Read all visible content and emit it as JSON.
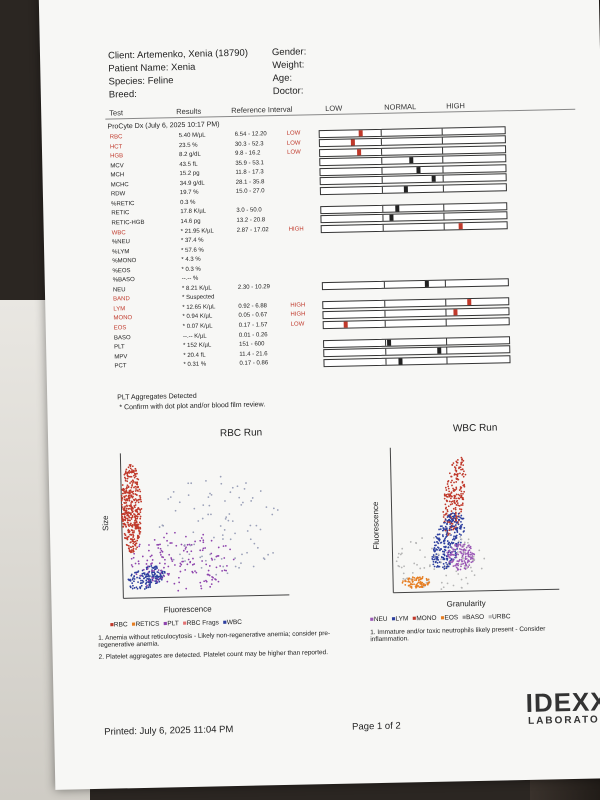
{
  "header": {
    "client": "Client: Artemenko, Xenia (18790)",
    "patient": "Patient Name: Xenia",
    "species": "Species: Feline",
    "breed": "Breed:",
    "gender": "Gender:",
    "weight": "Weight:",
    "age": "Age:",
    "doctor": "Doctor:"
  },
  "columns": {
    "test": "Test",
    "results": "Results",
    "reference": "Reference Interval",
    "low": "LOW",
    "normal": "NORMAL",
    "high": "HIGH"
  },
  "procyte": "ProCyte Dx (July 6, 2025 10:17 PM)",
  "rows": [
    {
      "test": "RBC",
      "result": "5.40 M/µL",
      "ref": "6.54 - 12.20",
      "flag": "LOW",
      "red": true,
      "gauge": {
        "group": "g1",
        "pos": 0.21,
        "red": true
      }
    },
    {
      "test": "HCT",
      "result": "23.5 %",
      "ref": "30.3 - 52.3",
      "flag": "LOW",
      "red": true,
      "gauge": {
        "group": "g1",
        "pos": 0.17,
        "red": true
      }
    },
    {
      "test": "HGB",
      "result": "8.2 g/dL",
      "ref": "9.8 - 16.2",
      "flag": "LOW",
      "red": true,
      "gauge": {
        "group": "g1",
        "pos": 0.2,
        "red": true
      }
    },
    {
      "test": "MCV",
      "result": "43.5 fL",
      "ref": "35.9 - 53.1",
      "flag": "",
      "red": false,
      "gauge": {
        "group": "g1",
        "pos": 0.48,
        "red": false
      }
    },
    {
      "test": "MCH",
      "result": "15.2 pg",
      "ref": "11.8 - 17.3",
      "flag": "",
      "red": false,
      "gauge": {
        "group": "g1",
        "pos": 0.52,
        "red": false
      }
    },
    {
      "test": "MCHC",
      "result": "34.9 g/dL",
      "ref": "28.1 - 35.8",
      "flag": "",
      "red": false,
      "gauge": {
        "group": "g1",
        "pos": 0.6,
        "red": false
      }
    },
    {
      "test": "RDW",
      "result": "19.7 %",
      "ref": "15.0 - 27.0",
      "flag": "",
      "red": false,
      "gauge": {
        "group": "g1",
        "pos": 0.45,
        "red": false
      }
    },
    {
      "test": "%RETIC",
      "result": "0.3 %",
      "ref": "",
      "flag": "",
      "red": false
    },
    {
      "test": "RETIC",
      "result": "17.8 K/µL",
      "ref": "3.0 - 50.0",
      "flag": "",
      "red": false,
      "gauge": {
        "group": "g2",
        "pos": 0.4,
        "red": false
      }
    },
    {
      "test": "RETIC-HGB",
      "result": "14.6 pg",
      "ref": "13.2 - 20.8",
      "flag": "",
      "red": false,
      "gauge": {
        "group": "g2",
        "pos": 0.37,
        "red": false
      }
    },
    {
      "test": "WBC",
      "result": "* 21.95 K/µL",
      "ref": "2.87 - 17.02",
      "flag": "HIGH",
      "red": true,
      "gauge": {
        "group": "g2",
        "pos": 0.74,
        "red": true
      }
    },
    {
      "test": "%NEU",
      "result": "* 37.4 %",
      "ref": "",
      "flag": "",
      "red": false
    },
    {
      "test": "%LYM",
      "result": "* 57.6 %",
      "ref": "",
      "flag": "",
      "red": false
    },
    {
      "test": "%MONO",
      "result": "* 4.3 %",
      "ref": "",
      "flag": "",
      "red": false
    },
    {
      "test": "%EOS",
      "result": "* 0.3 %",
      "ref": "",
      "flag": "",
      "red": false
    },
    {
      "test": "%BASO",
      "result": "--.-- %",
      "ref": "",
      "flag": "",
      "red": false
    },
    {
      "test": "NEU",
      "result": "* 8.21 K/µL",
      "ref": "2.30 - 10.29",
      "flag": "",
      "red": false,
      "gauge": {
        "group": "g3",
        "pos": 0.55,
        "red": false
      }
    },
    {
      "test": "BAND",
      "result": "* Suspected",
      "ref": "",
      "flag": "",
      "red": true
    },
    {
      "test": "LYM",
      "result": "* 12.65 K/µL",
      "ref": "0.92 - 6.88",
      "flag": "HIGH",
      "red": true,
      "gauge": {
        "group": "g4",
        "pos": 0.78,
        "red": true
      }
    },
    {
      "test": "MONO",
      "result": "* 0.94 K/µL",
      "ref": "0.05 - 0.67",
      "flag": "HIGH",
      "red": true,
      "gauge": {
        "group": "g4",
        "pos": 0.7,
        "red": true
      }
    },
    {
      "test": "EOS",
      "result": "* 0.07 K/µL",
      "ref": "0.17 - 1.57",
      "flag": "LOW",
      "red": true,
      "gauge": {
        "group": "g4",
        "pos": 0.11,
        "red": true
      }
    },
    {
      "test": "BASO",
      "result": "--.-- K/µL",
      "ref": "0.01 - 0.26",
      "flag": "",
      "red": false
    },
    {
      "test": "PLT",
      "result": "* 152 K/µL",
      "ref": "151 - 600",
      "flag": "",
      "red": false,
      "gauge": {
        "group": "g5",
        "pos": 0.34,
        "red": false
      }
    },
    {
      "test": "MPV",
      "result": "* 20.4 fL",
      "ref": "11.4 - 21.6",
      "flag": "",
      "red": false,
      "gauge": {
        "group": "g5",
        "pos": 0.61,
        "red": false
      }
    },
    {
      "test": "PCT",
      "result": "* 0.31 %",
      "ref": "0.17 - 0.86",
      "flag": "",
      "red": false,
      "gauge": {
        "group": "g5",
        "pos": 0.4,
        "red": false
      }
    }
  ],
  "notes": {
    "plt_aggregates": "PLT Aggregates Detected",
    "confirm": "* Confirm with dot plot and/or blood film review."
  },
  "rbc_plot": {
    "title": "RBC Run",
    "ylabel": "Size",
    "xlabel": "Fluorescence",
    "legend": [
      "RBC",
      "RETICS",
      "PLT",
      "RBC Frags",
      "WBC"
    ],
    "legend_colors": [
      "#c0392b",
      "#e67e22",
      "#8e44ad",
      "#e57373",
      "#2c3e9e"
    ]
  },
  "wbc_plot": {
    "title": "WBC Run",
    "ylabel": "Fluorescence",
    "xlabel": "Granularity",
    "legend": [
      "NEU",
      "LYM",
      "MONO",
      "EOS",
      "BASO",
      "URBC"
    ],
    "legend_colors": [
      "#9b59b6",
      "#2c3e9e",
      "#c0392b",
      "#e67e22",
      "#999999",
      "#bbbbbb"
    ]
  },
  "comments_rbc": [
    "1. Anemia without reticulocytosis - Likely non-regenerative anemia; consider pre-regenerative anemia.",
    "2. Platelet aggregates are detected. Platelet count may be higher than reported."
  ],
  "comments_wbc": [
    "1. Immature and/or toxic neutrophils likely present - Consider inflammation."
  ],
  "footer": {
    "printed": "Printed: July 6, 2025 11:04 PM",
    "page": "Page 1 of 2",
    "logo": "IDEXX",
    "logo_sub": "LABORATORIES"
  }
}
